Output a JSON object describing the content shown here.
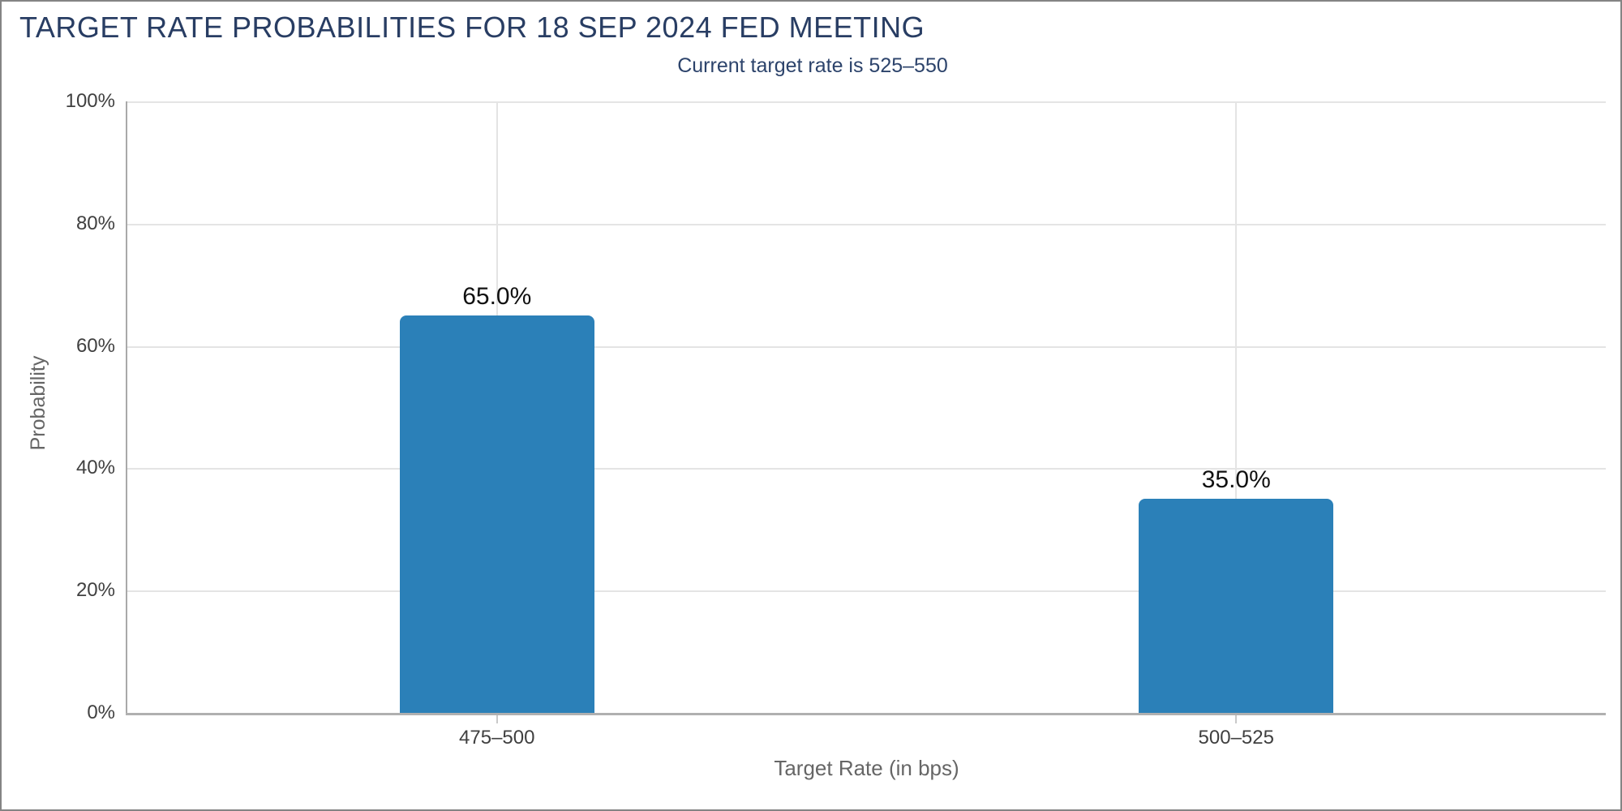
{
  "title": "TARGET RATE PROBABILITIES FOR 18 SEP 2024 FED MEETING",
  "subtitle": "Current target rate is 525–550",
  "colors": {
    "bar": "#2b80b8",
    "title_text": "#283d63",
    "subtitle_text": "#2c436b",
    "axis_line": "#b0b0b0",
    "gridline": "#e4e4e4",
    "tick_label": "#404040",
    "axis_title": "#666666",
    "value_label": "#111111",
    "page_border": "#848484"
  },
  "chart_data": {
    "type": "bar",
    "title": "TARGET RATE PROBABILITIES FOR 18 SEP 2024 FED MEETING",
    "subtitle": "Current target rate is 525–550",
    "categories": [
      "475–500",
      "500–525"
    ],
    "values": [
      65.0,
      35.0
    ],
    "value_labels": [
      "65.0%",
      "35.0%"
    ],
    "xlabel": "Target Rate (in bps)",
    "ylabel": "Probability",
    "ylim": [
      0,
      100
    ],
    "yticks": [
      "0%",
      "20%",
      "40%",
      "60%",
      "80%",
      "100%"
    ],
    "grid": true,
    "legend": "none",
    "bar_color": "#2b80b8"
  }
}
